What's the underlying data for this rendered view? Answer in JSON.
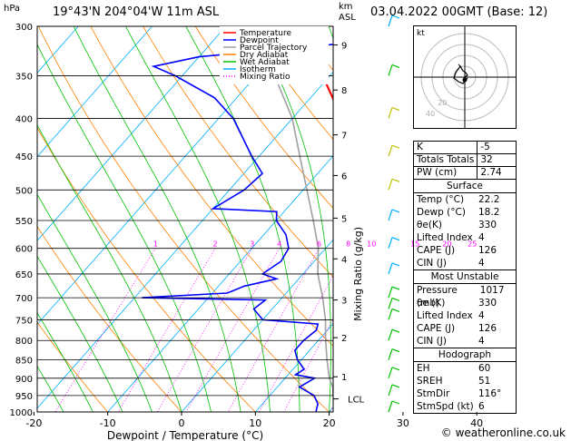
{
  "header": {
    "pressure_unit": "hPa",
    "location": "19°43'N  204°04'W  11m  ASL",
    "km": "km",
    "asl": "ASL",
    "datetime": "03.04.2022  00GMT  (Base: 12)"
  },
  "legend": [
    {
      "label": "Temperature",
      "color": "#ff0000"
    },
    {
      "label": "Dewpoint",
      "color": "#0000ff"
    },
    {
      "label": "Parcel Trajectory",
      "color": "#a0a0a0"
    },
    {
      "label": "Dry Adiabat",
      "color": "#ff8000"
    },
    {
      "label": "Wet Adiabat",
      "color": "#00c000"
    },
    {
      "label": "Isotherm",
      "color": "#00b0ff"
    },
    {
      "label": "Mixing Ratio",
      "color": "#ff00ff"
    }
  ],
  "chart_data": {
    "type": "line",
    "title": "",
    "xlabel": "Dewpoint / Temperature (°C)",
    "ylabel_right": "Mixing Ratio (g/kg)",
    "pressure_levels": [
      300,
      350,
      400,
      450,
      500,
      550,
      600,
      650,
      700,
      750,
      800,
      850,
      900,
      950,
      1000
    ],
    "temperature_ticks": [
      -30,
      -20,
      -10,
      0,
      10,
      20,
      30,
      40
    ],
    "xlim": [
      -35,
      40
    ],
    "ylim_hpa": [
      1000,
      300
    ],
    "km_ticks": [
      {
        "km": "1",
        "p": 896
      },
      {
        "km": "2",
        "p": 793
      },
      {
        "km": "3",
        "p": 705
      },
      {
        "km": "4",
        "p": 620
      },
      {
        "km": "5",
        "p": 546
      },
      {
        "km": "6",
        "p": 478
      },
      {
        "km": "7",
        "p": 421
      },
      {
        "km": "8",
        "p": 366
      },
      {
        "km": "9",
        "p": 318
      }
    ],
    "lcl_label": "LCL",
    "lcl_p": 960,
    "mixing_ratio_labels": [
      "1",
      "2",
      "3",
      "4",
      "6",
      "8",
      "10",
      "15",
      "20",
      "25"
    ],
    "mixing_ratio_values": [
      1,
      2,
      3,
      4,
      6,
      8,
      10,
      15,
      20,
      25
    ],
    "series": [
      {
        "name": "Temperature",
        "color": "#ff0000",
        "points": [
          [
            1000,
            22.2
          ],
          [
            975,
            21
          ],
          [
            950,
            19.5
          ],
          [
            925,
            18.5
          ],
          [
            900,
            17.5
          ],
          [
            875,
            17.0
          ],
          [
            850,
            16.0
          ],
          [
            825,
            15.0
          ],
          [
            800,
            14.5
          ],
          [
            775,
            13.5
          ],
          [
            750,
            12.5
          ],
          [
            725,
            13.5
          ],
          [
            700,
            12.5
          ],
          [
            675,
            11.0
          ],
          [
            650,
            9.0
          ],
          [
            625,
            7.0
          ],
          [
            600,
            5.5
          ],
          [
            575,
            3.5
          ],
          [
            550,
            1.5
          ],
          [
            525,
            1.0
          ],
          [
            500,
            -2.0
          ],
          [
            475,
            -4.5
          ],
          [
            450,
            -7.5
          ],
          [
            425,
            -10.5
          ],
          [
            400,
            -13.5
          ],
          [
            375,
            -17.0
          ],
          [
            350,
            -21.0
          ],
          [
            325,
            -25.0
          ],
          [
            300,
            -29.0
          ]
        ]
      },
      {
        "name": "Dewpoint",
        "color": "#0000ff",
        "points": [
          [
            1000,
            18.2
          ],
          [
            975,
            17.5
          ],
          [
            950,
            16.0
          ],
          [
            925,
            13.0
          ],
          [
            900,
            14.0
          ],
          [
            890,
            11.0
          ],
          [
            875,
            11.5
          ],
          [
            850,
            9.5
          ],
          [
            825,
            8.0
          ],
          [
            800,
            8.0
          ],
          [
            775,
            8.5
          ],
          [
            760,
            8.0
          ],
          [
            750,
            0.0
          ],
          [
            725,
            -2.5
          ],
          [
            705,
            -2.0
          ],
          [
            700,
            -19.0
          ],
          [
            690,
            -8.0
          ],
          [
            675,
            -6.5
          ],
          [
            660,
            -3.0
          ],
          [
            650,
            -5.5
          ],
          [
            625,
            -4.5
          ],
          [
            600,
            -5.0
          ],
          [
            575,
            -7.0
          ],
          [
            550,
            -10.0
          ],
          [
            535,
            -11.0
          ],
          [
            530,
            -20.0
          ],
          [
            500,
            -18.0
          ],
          [
            475,
            -17.5
          ],
          [
            450,
            -21.0
          ],
          [
            400,
            -28.0
          ],
          [
            375,
            -33.0
          ],
          [
            350,
            -41.0
          ],
          [
            340,
            -45.0
          ],
          [
            330,
            -40.0
          ],
          [
            315,
            -20.0
          ],
          [
            308,
            -17.0
          ],
          [
            300,
            -21.0
          ]
        ]
      },
      {
        "name": "Parcel Trajectory",
        "color": "#a0a0a0",
        "points": [
          [
            1000,
            22.2
          ],
          [
            960,
            19.0
          ],
          [
            925,
            17.5
          ],
          [
            900,
            16.0
          ],
          [
            850,
            13.5
          ],
          [
            800,
            11.0
          ],
          [
            750,
            8.5
          ],
          [
            700,
            5.5
          ],
          [
            650,
            2.0
          ],
          [
            600,
            -1.0
          ],
          [
            550,
            -5.0
          ],
          [
            500,
            -9.5
          ],
          [
            450,
            -14.5
          ],
          [
            400,
            -20.0
          ],
          [
            350,
            -27.5
          ],
          [
            300,
            -35.0
          ]
        ]
      }
    ]
  },
  "hodograph": {
    "label": "kt",
    "ring_labels": [
      "40",
      "20"
    ]
  },
  "indices": {
    "top": [
      {
        "label": "K",
        "value": "-5"
      },
      {
        "label": "Totals Totals",
        "value": "32"
      },
      {
        "label": "PW (cm)",
        "value": "2.74"
      }
    ],
    "surface": {
      "title": "Surface",
      "rows": [
        {
          "label": "Temp (°C)",
          "value": "22.2"
        },
        {
          "label": "Dewp (°C)",
          "value": "18.2"
        },
        {
          "label": "θe(K)",
          "value": "330"
        },
        {
          "label": "Lifted Index",
          "value": "4"
        },
        {
          "label": "CAPE (J)",
          "value": "126"
        },
        {
          "label": "CIN (J)",
          "value": "4"
        }
      ]
    },
    "most_unstable": {
      "title": "Most Unstable",
      "rows": [
        {
          "label": "Pressure (mb)",
          "value": "1017"
        },
        {
          "label": "θe (K)",
          "value": "330"
        },
        {
          "label": "Lifted Index",
          "value": "4"
        },
        {
          "label": "CAPE (J)",
          "value": "126"
        },
        {
          "label": "CIN (J)",
          "value": "4"
        }
      ]
    },
    "hodograph_box": {
      "title": "Hodograph",
      "rows": [
        {
          "label": "EH",
          "value": "60"
        },
        {
          "label": "SREH",
          "value": "51"
        },
        {
          "label": "StmDir",
          "value": "116°"
        },
        {
          "label": "StmSpd (kt)",
          "value": "6"
        }
      ]
    }
  },
  "footer": "© weatheronline.co.uk"
}
